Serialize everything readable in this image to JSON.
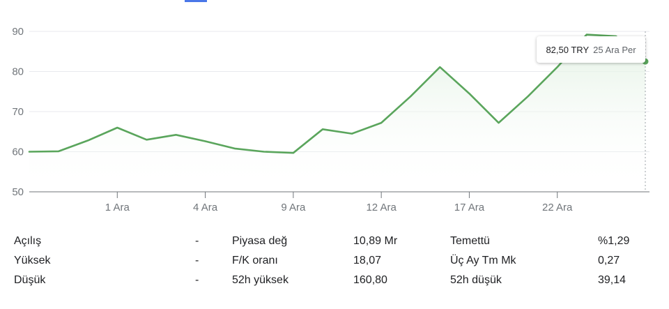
{
  "colors": {
    "line": "#5aa55c",
    "fill_top": "#e2f1e3",
    "grid": "#e8eaed",
    "axis": "#70757a"
  },
  "chart_data": {
    "type": "line",
    "ylim": [
      50,
      90
    ],
    "y_ticks": [
      90,
      80,
      70,
      60,
      50
    ],
    "x_tick_labels": [
      "1 Ara",
      "4 Ara",
      "9 Ara",
      "12 Ara",
      "17 Ara",
      "22 Ara"
    ],
    "x_tick_index": [
      3,
      6,
      9,
      12,
      15,
      18
    ],
    "x_count": 22,
    "values": [
      60.0,
      60.1,
      62.8,
      66.0,
      63.0,
      64.2,
      62.6,
      60.8,
      60.0,
      59.7,
      65.6,
      64.5,
      67.2,
      73.8,
      81.1,
      74.5,
      67.2,
      73.8,
      81.1,
      89.2,
      88.8,
      82.5
    ]
  },
  "tooltip": {
    "price": "82,50 TRY",
    "date": "25 Ara Per"
  },
  "stats": {
    "rows": [
      {
        "l1": "Açılış",
        "v1": "-",
        "l2": "Piyasa değ",
        "v2": "10,89 Mr",
        "l3": "Temettü",
        "v3": "%1,29"
      },
      {
        "l1": "Yüksek",
        "v1": "-",
        "l2": "F/K oranı",
        "v2": "18,07",
        "l3": "Üç Ay Tm Mk",
        "v3": "0,27"
      },
      {
        "l1": "Düşük",
        "v1": "-",
        "l2": "52h yüksek",
        "v2": "160,80",
        "l3": "52h düşük",
        "v3": "39,14"
      }
    ]
  }
}
